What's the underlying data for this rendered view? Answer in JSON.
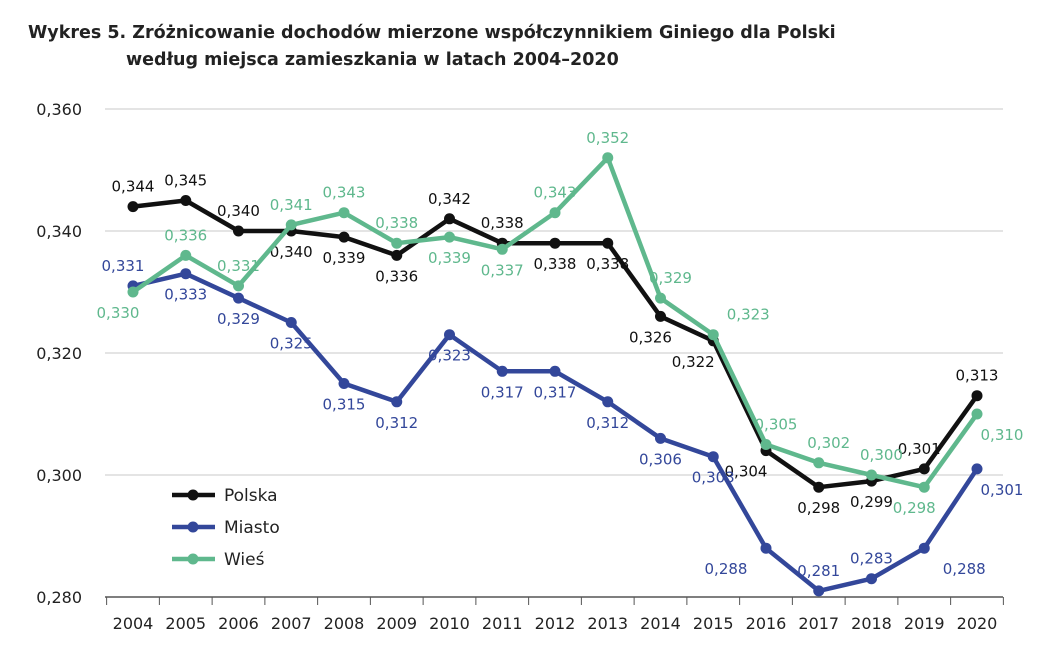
{
  "chart_data": {
    "type": "line",
    "title": "Wykres 5. Zróżnicowanie dochodów mierzone współczynnikiem Giniego dla Polski",
    "subtitle": "według miejsca zamieszkania w latach 2004–2020",
    "xlabel": "",
    "ylabel": "",
    "ylim": [
      0.28,
      0.36
    ],
    "yticks": [
      "0,280",
      "0,300",
      "0,320",
      "0,340",
      "0,360"
    ],
    "grid": "horizontal",
    "legend": "bottom-left",
    "categories": [
      "2004",
      "2005",
      "2006",
      "2007",
      "2008",
      "2009",
      "2010",
      "2011",
      "2012",
      "2013",
      "2014",
      "2015",
      "2016",
      "2017",
      "2018",
      "2019",
      "2020"
    ],
    "series": [
      {
        "name": "Polska",
        "color": "#111111",
        "values": [
          0.344,
          0.345,
          0.34,
          0.34,
          0.339,
          0.336,
          0.342,
          0.338,
          0.338,
          0.338,
          0.326,
          0.322,
          0.304,
          0.298,
          0.299,
          0.301,
          0.313
        ]
      },
      {
        "name": "Miasto",
        "color": "#33479a",
        "values": [
          0.331,
          0.333,
          0.329,
          0.325,
          0.315,
          0.312,
          0.323,
          0.317,
          0.317,
          0.312,
          0.306,
          0.303,
          0.288,
          0.281,
          0.283,
          0.288,
          0.301
        ]
      },
      {
        "name": "Wieś",
        "color": "#5fb88d",
        "values": [
          0.33,
          0.336,
          0.331,
          0.341,
          0.343,
          0.338,
          0.339,
          0.337,
          0.343,
          0.352,
          0.329,
          0.323,
          0.305,
          0.302,
          0.3,
          0.298,
          0.31
        ]
      }
    ]
  }
}
